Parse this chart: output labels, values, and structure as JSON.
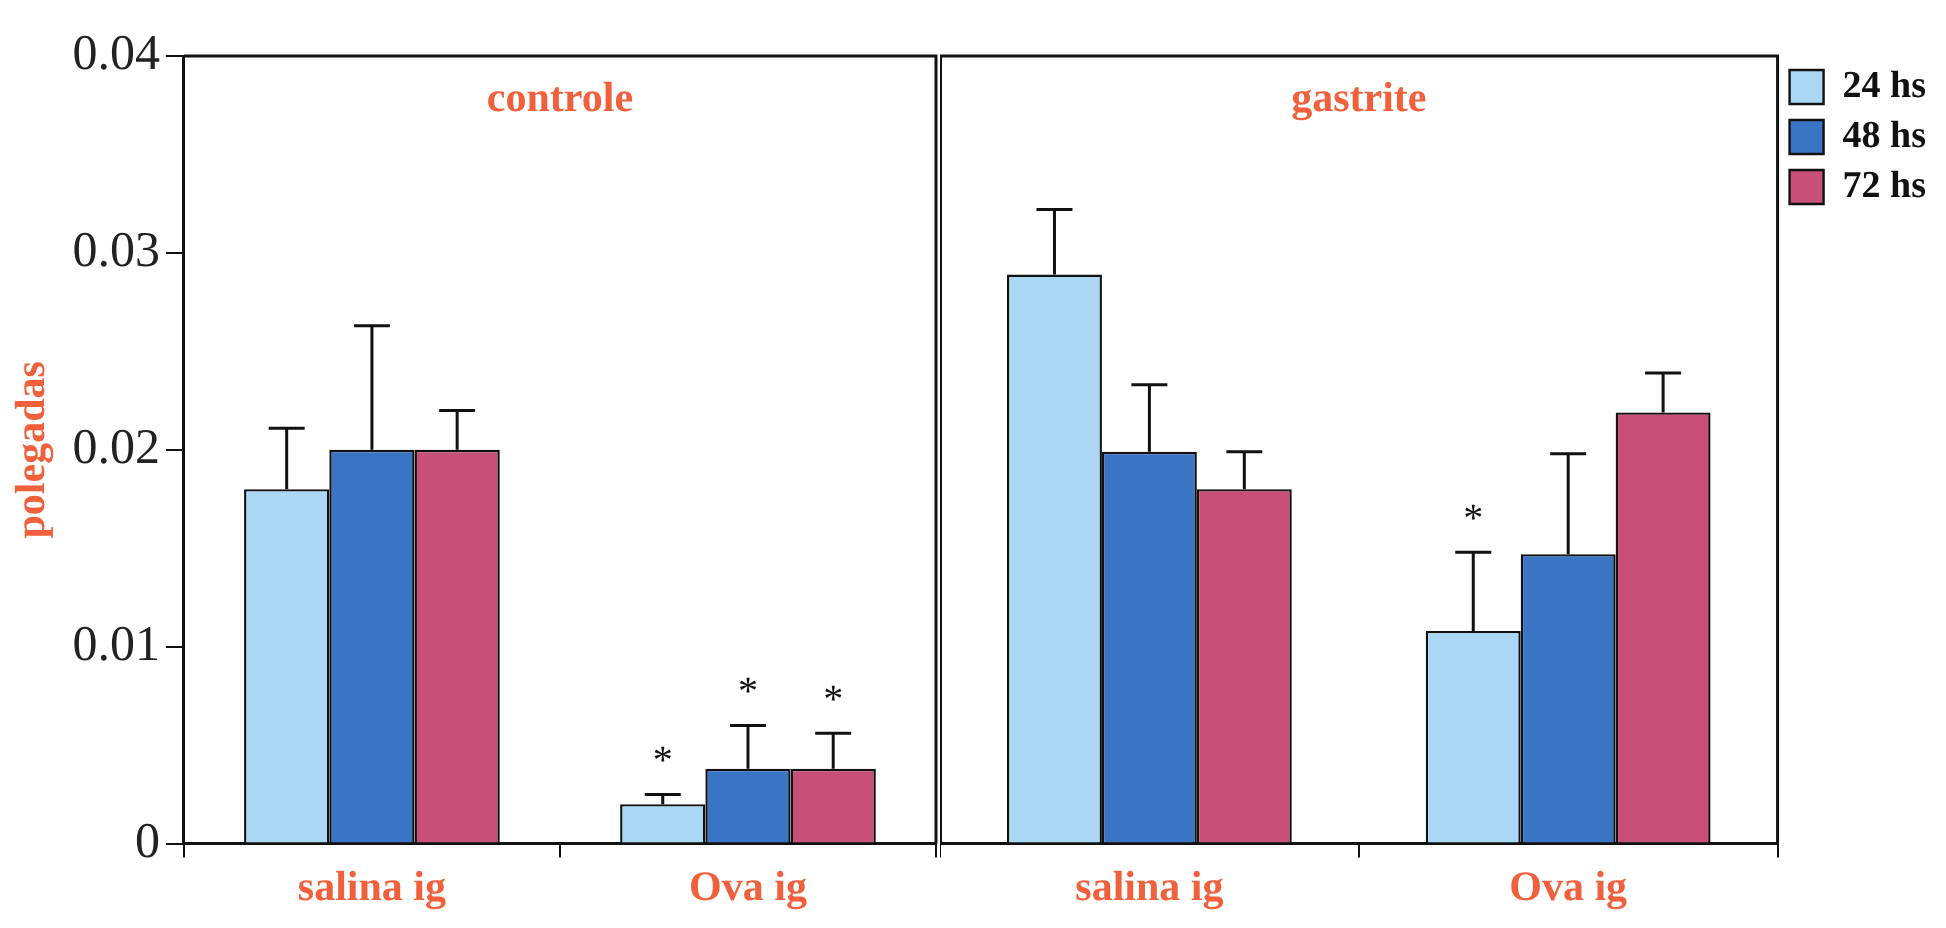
{
  "chart_data": [
    {
      "type": "bar",
      "title": "controle",
      "ylabel": "polegadas",
      "categories": [
        "salina ig",
        "Ova ig"
      ],
      "ylim": [
        0,
        0.04
      ],
      "yticks": [
        0,
        0.01,
        0.02,
        0.03,
        0.04
      ],
      "grid": false,
      "legend": false,
      "series": [
        {
          "color": "#aad8f4",
          "values": [
            0.018,
            0.002
          ],
          "errors": [
            0.0031,
            0.0005
          ]
        },
        {
          "color": "#3a74c4",
          "values": [
            0.02,
            0.0038
          ],
          "errors": [
            0.0063,
            0.0022
          ]
        },
        {
          "color": "#c84f78",
          "values": [
            0.02,
            0.0038
          ],
          "errors": [
            0.002,
            0.0018
          ]
        }
      ],
      "annotations": [
        {
          "text": "*",
          "x": "Ova ig",
          "y": 0.002
        },
        {
          "text": "*",
          "x": "Ova ig",
          "y": 0.006
        },
        {
          "text": "*",
          "x": "Ova ig",
          "y": 0.0056
        }
      ]
    },
    {
      "type": "bar",
      "title": "gastrite",
      "categories": [
        "salina ig",
        "Ova ig"
      ],
      "ylim": [
        0,
        0.04
      ],
      "yticks": [
        0,
        0.01,
        0.02,
        0.03,
        0.04
      ],
      "tick_labels": "x",
      "grid": false,
      "legend": "top right",
      "series": [
        {
          "name": "24 hs",
          "color": "#aad8f4",
          "values": [
            0.0289,
            0.0108
          ],
          "errors": [
            0.0033,
            0.004
          ]
        },
        {
          "name": "48 hs",
          "color": "#3a74c4",
          "values": [
            0.0199,
            0.0147
          ],
          "errors": [
            0.0034,
            0.0051
          ]
        },
        {
          "name": "72 hs",
          "color": "#c84f78",
          "values": [
            0.018,
            0.0219
          ],
          "errors": [
            0.0019,
            0.002
          ]
        }
      ],
      "annotations": [
        {
          "text": "*",
          "x": "Ova ig",
          "y": 0.0148
        }
      ]
    }
  ]
}
